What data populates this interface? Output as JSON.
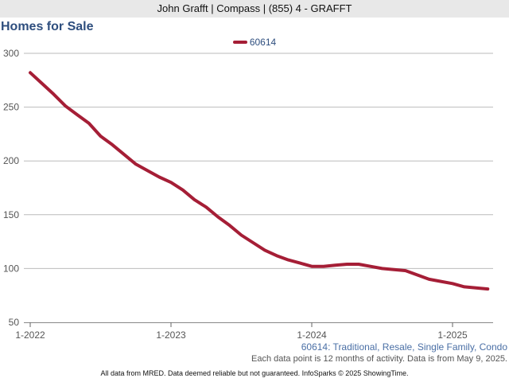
{
  "header": {
    "text": "John Grafft | Compass | (855) 4 - GRAFFT"
  },
  "colors": {
    "series": "#a51e36",
    "title": "#2e4e7e",
    "grid": "#bbbbbb",
    "caption": "#4a6fa5"
  },
  "chart_data": {
    "type": "line",
    "title": "Homes for Sale",
    "xlabel": "",
    "ylabel": "",
    "ylim": [
      50,
      300
    ],
    "yticks": [
      50,
      100,
      150,
      200,
      250,
      300
    ],
    "xticks": [
      {
        "label": "1-2022",
        "t": 0
      },
      {
        "label": "1-2023",
        "t": 12
      },
      {
        "label": "1-2024",
        "t": 24
      },
      {
        "label": "1-2025",
        "t": 36
      }
    ],
    "grid": true,
    "legend_position": "top",
    "series": [
      {
        "name": "60614",
        "x": [
          "1-2022",
          "2-2022",
          "3-2022",
          "4-2022",
          "5-2022",
          "6-2022",
          "7-2022",
          "8-2022",
          "9-2022",
          "10-2022",
          "11-2022",
          "12-2022",
          "1-2023",
          "2-2023",
          "3-2023",
          "4-2023",
          "5-2023",
          "6-2023",
          "7-2023",
          "8-2023",
          "9-2023",
          "10-2023",
          "11-2023",
          "12-2023",
          "1-2024",
          "2-2024",
          "3-2024",
          "4-2024",
          "5-2024",
          "6-2024",
          "7-2024",
          "8-2024",
          "9-2024",
          "10-2024",
          "11-2024",
          "12-2024",
          "1-2025",
          "2-2025",
          "3-2025",
          "4-2025"
        ],
        "values": [
          282,
          272,
          262,
          251,
          243,
          235,
          223,
          215,
          206,
          197,
          191,
          185,
          180,
          173,
          164,
          157,
          148,
          140,
          131,
          124,
          117,
          112,
          108,
          105,
          102,
          102,
          103,
          104,
          104,
          102,
          100,
          99,
          98,
          94,
          90,
          88,
          86,
          83,
          82,
          81
        ]
      }
    ]
  },
  "captions": {
    "line1": "60614: Traditional, Resale, Single Family, Condo",
    "line2": "Each data point is 12 months of activity. Data is from May 9, 2025."
  },
  "footer": {
    "text": "All data from MRED. Data deemed reliable but not guaranteed. InfoSparks © 2025 ShowingTime."
  }
}
